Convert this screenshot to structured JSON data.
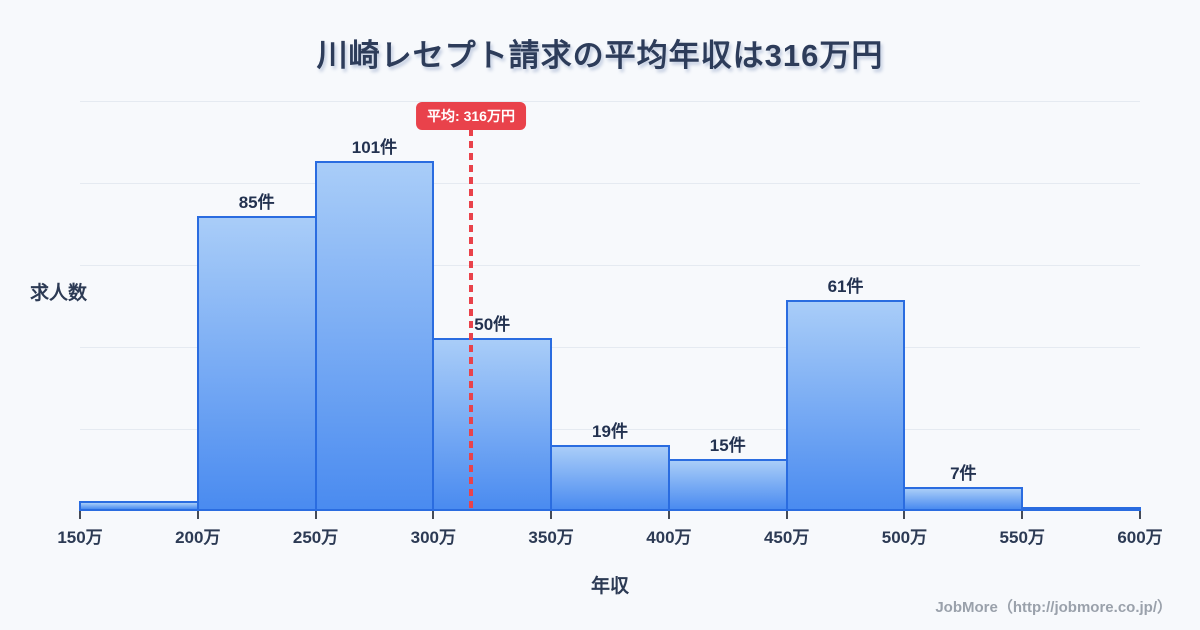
{
  "page": {
    "title": "川崎レセプト請求の平均年収は316万円",
    "footer_credit": "JobMore（http://jobmore.co.jp/）"
  },
  "chart_data": {
    "type": "bar",
    "title": "川崎レセプト請求の平均年収は316万円",
    "xlabel": "年収",
    "ylabel": "求人数",
    "unit": "件",
    "x_tick_labels": [
      "150万",
      "200万",
      "250万",
      "300万",
      "350万",
      "400万",
      "450万",
      "500万",
      "550万",
      "600万"
    ],
    "x_range_man_yen": [
      150,
      600
    ],
    "categories": [
      "150万-200万",
      "200万-250万",
      "250万-300万",
      "300万-350万",
      "350万-400万",
      "400万-450万",
      "450万-500万",
      "500万-550万",
      "550万-600万"
    ],
    "values": [
      3,
      85,
      101,
      50,
      19,
      15,
      61,
      7,
      1
    ],
    "bar_labels": [
      "",
      "85件",
      "101件",
      "50件",
      "19件",
      "15件",
      "61件",
      "7件",
      ""
    ],
    "ylim": [
      0,
      118
    ],
    "grid": "horizontal",
    "gridline_count": 5,
    "legend": "none",
    "mean_line": {
      "x_man_yen": 316,
      "label": "平均: 316万円"
    }
  },
  "colors": {
    "background": "#f7f9fc",
    "title_text": "#2d3c5a",
    "axis_text": "#2c3a54",
    "bar_fill_top": "#a9cdf8",
    "bar_fill_bottom": "#4a8bf0",
    "bar_border": "#2a6ce0",
    "grid_line": "#e5eaf1",
    "mean_red": "#e9424b",
    "footer_text": "#9aa1ab",
    "tick_mark": "#454b57"
  }
}
